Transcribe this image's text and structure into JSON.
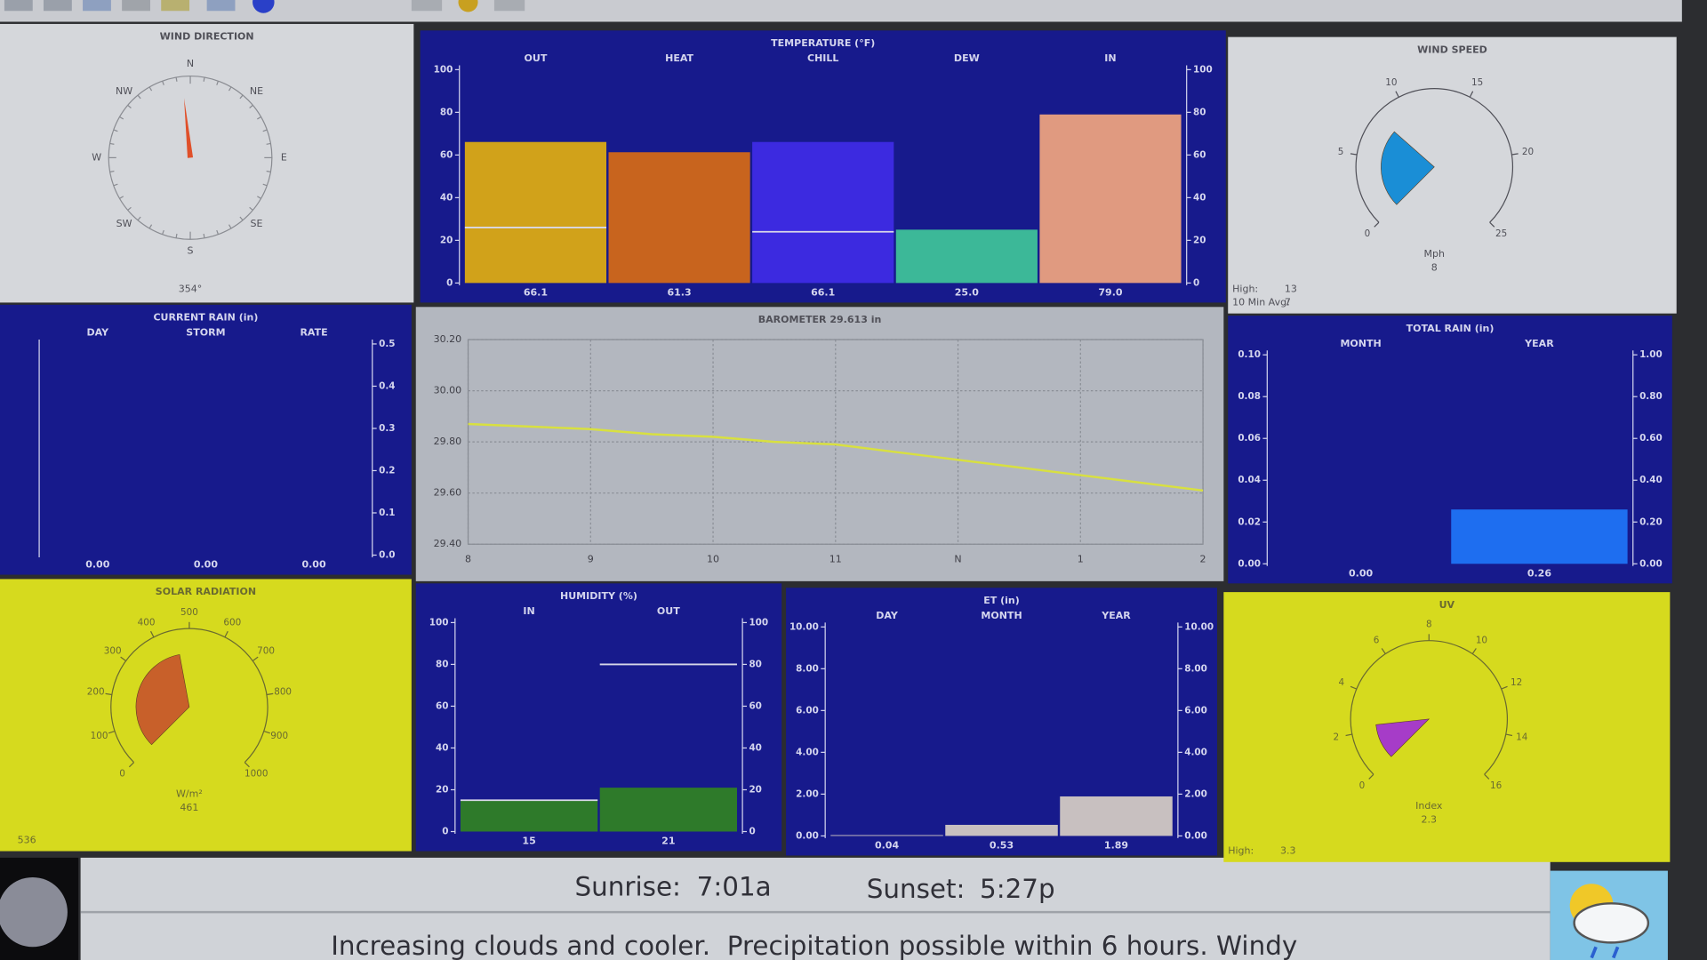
{
  "chart_data": [
    {
      "type": "compass",
      "title": "WIND DIRECTION",
      "labels": [
        "N",
        "NE",
        "E",
        "SE",
        "S",
        "SW",
        "W",
        "NW"
      ],
      "value": 354,
      "value_label": "354°",
      "color": "#e0502a"
    },
    {
      "type": "bar",
      "title": "TEMPERATURE (°F)",
      "categories": [
        "OUT",
        "HEAT",
        "CHILL",
        "DEW",
        "IN"
      ],
      "values": [
        66.1,
        61.3,
        66.1,
        25,
        79
      ],
      "value_labels": [
        "66.1",
        "61.3",
        "66.1",
        "25.0",
        "79.0"
      ],
      "colors": [
        "#d1a21a",
        "#c8641e",
        "#3c2ae0",
        "#3cb898",
        "#e09a80"
      ],
      "markers": [
        26,
        null,
        24,
        null,
        null
      ],
      "ylim": [
        0,
        100
      ],
      "yticks": [
        0,
        20,
        40,
        60,
        80,
        100
      ],
      "y2lim": [
        0,
        100
      ],
      "y2ticks": [
        0,
        20,
        40,
        60,
        80,
        100
      ]
    },
    {
      "type": "gauge",
      "title": "WIND SPEED",
      "lim": [
        0,
        25
      ],
      "ticks": [
        0,
        5,
        10,
        15,
        20,
        25
      ],
      "value": 8,
      "unit": "Mph",
      "color": "#1a8ed6",
      "stats": [
        {
          "label": "High:",
          "value": 13
        },
        {
          "label": "10 Min Avg:",
          "value": 7
        }
      ]
    },
    {
      "type": "bar",
      "title": "CURRENT RAIN (in)",
      "categories": [
        "DAY",
        "STORM",
        "RATE"
      ],
      "values": [
        0,
        0,
        0
      ],
      "value_labels": [
        "0.00",
        "0.00",
        "0.00"
      ],
      "color": "#3c6ee0",
      "y2lim": [
        0,
        0.5
      ],
      "y2ticks": [
        {
          "value": 0,
          "label": "0.0"
        },
        0.1,
        0.2,
        0.3,
        0.4,
        0.5
      ]
    },
    {
      "type": "line",
      "title": "BAROMETER 29.613 in",
      "x": [
        8,
        8.5,
        9,
        9.5,
        10,
        10.5,
        11,
        11.5,
        12,
        12.5,
        13,
        13.5,
        14
      ],
      "values": [
        29.87,
        29.86,
        29.85,
        29.83,
        29.82,
        29.8,
        29.79,
        29.76,
        29.73,
        29.7,
        29.67,
        29.64,
        29.61
      ],
      "color": "#d8e040",
      "xlim": [
        8,
        14
      ],
      "xticks": [
        8,
        9,
        10,
        11,
        {
          "value": 12,
          "label": "N"
        },
        {
          "value": 13,
          "label": "1"
        },
        {
          "value": 14,
          "label": "2"
        }
      ],
      "ylim": [
        29.4,
        30.2
      ],
      "yticks": [
        {
          "value": 29.4,
          "label": "29.40"
        },
        {
          "value": 29.6,
          "label": "29.60"
        },
        {
          "value": 29.8,
          "label": "29.80"
        },
        {
          "value": 30,
          "label": "30.00"
        },
        {
          "value": 30.2,
          "label": "30.20"
        }
      ],
      "grid": true
    },
    {
      "type": "bar",
      "title": "TOTAL RAIN (in)",
      "categories": [
        "MONTH",
        "YEAR"
      ],
      "values": [
        0,
        0.26
      ],
      "value_labels": [
        "0.00",
        "0.26"
      ],
      "value_axis": [
        "y",
        "y2"
      ],
      "color": "#1e6ef0",
      "ylim": [
        0,
        0.1
      ],
      "yticks": [
        {
          "value": 0,
          "label": "0.00"
        },
        0.02,
        0.04,
        0.06,
        0.08,
        {
          "value": 0.1,
          "label": "0.10"
        }
      ],
      "y2lim": [
        0,
        1
      ],
      "y2ticks": [
        {
          "value": 0,
          "label": "0.00"
        },
        {
          "value": 0.2,
          "label": "0.20"
        },
        {
          "value": 0.4,
          "label": "0.40"
        },
        {
          "value": 0.6,
          "label": "0.60"
        },
        {
          "value": 0.8,
          "label": "0.80"
        },
        {
          "value": 1,
          "label": "1.00"
        }
      ]
    },
    {
      "type": "gauge",
      "title": "SOLAR RADIATION",
      "lim": [
        0,
        1000
      ],
      "ticks": [
        0,
        100,
        200,
        300,
        400,
        500,
        600,
        700,
        800,
        900,
        1000
      ],
      "value": 461,
      "unit": "W/m²",
      "color": "#c8602a",
      "stats": [
        {
          "value": 536
        }
      ]
    },
    {
      "type": "bar",
      "title": "HUMIDITY (%)",
      "categories": [
        "IN",
        "OUT"
      ],
      "values": [
        15,
        21
      ],
      "markers": [
        15,
        80
      ],
      "color": "#2e7a2a",
      "ylim": [
        0,
        100
      ],
      "yticks": [
        0,
        20,
        40,
        60,
        80,
        100
      ],
      "y2lim": [
        0,
        100
      ],
      "y2ticks": [
        0,
        20,
        40,
        60,
        80,
        100
      ]
    },
    {
      "type": "bar",
      "title": "ET (in)",
      "categories": [
        "DAY",
        "MONTH",
        "YEAR"
      ],
      "values": [
        0.04,
        0.53,
        1.89
      ],
      "color": "#c8c0c0",
      "ylim": [
        0,
        10
      ],
      "yticks": [
        {
          "value": 0,
          "label": "0.00"
        },
        {
          "value": 2,
          "label": "2.00"
        },
        {
          "value": 4,
          "label": "4.00"
        },
        {
          "value": 6,
          "label": "6.00"
        },
        {
          "value": 8,
          "label": "8.00"
        },
        {
          "value": 10,
          "label": "10.00"
        }
      ],
      "y2lim": [
        0,
        10
      ],
      "y2ticks": [
        {
          "value": 0,
          "label": "0.00"
        },
        {
          "value": 2,
          "label": "2.00"
        },
        {
          "value": 4,
          "label": "4.00"
        },
        {
          "value": 6,
          "label": "6.00"
        },
        {
          "value": 8,
          "label": "8.00"
        },
        {
          "value": 10,
          "label": "10.00"
        }
      ]
    },
    {
      "type": "gauge",
      "title": "UV",
      "lim": [
        0,
        16
      ],
      "ticks": [
        0,
        2,
        4,
        6,
        8,
        10,
        12,
        14,
        16
      ],
      "value": 2.3,
      "unit": "Index",
      "color": "#a63cc8",
      "stats": [
        {
          "label": "High:",
          "value": 3.3
        }
      ]
    }
  ],
  "almanac": {
    "sunrise_label": "Sunrise:",
    "sunrise": "7:01a",
    "sunset_label": "Sunset:",
    "sunset": "5:27p"
  },
  "forecast": "Increasing clouds and cooler.  Precipitation possible within 6 hours. Windy"
}
